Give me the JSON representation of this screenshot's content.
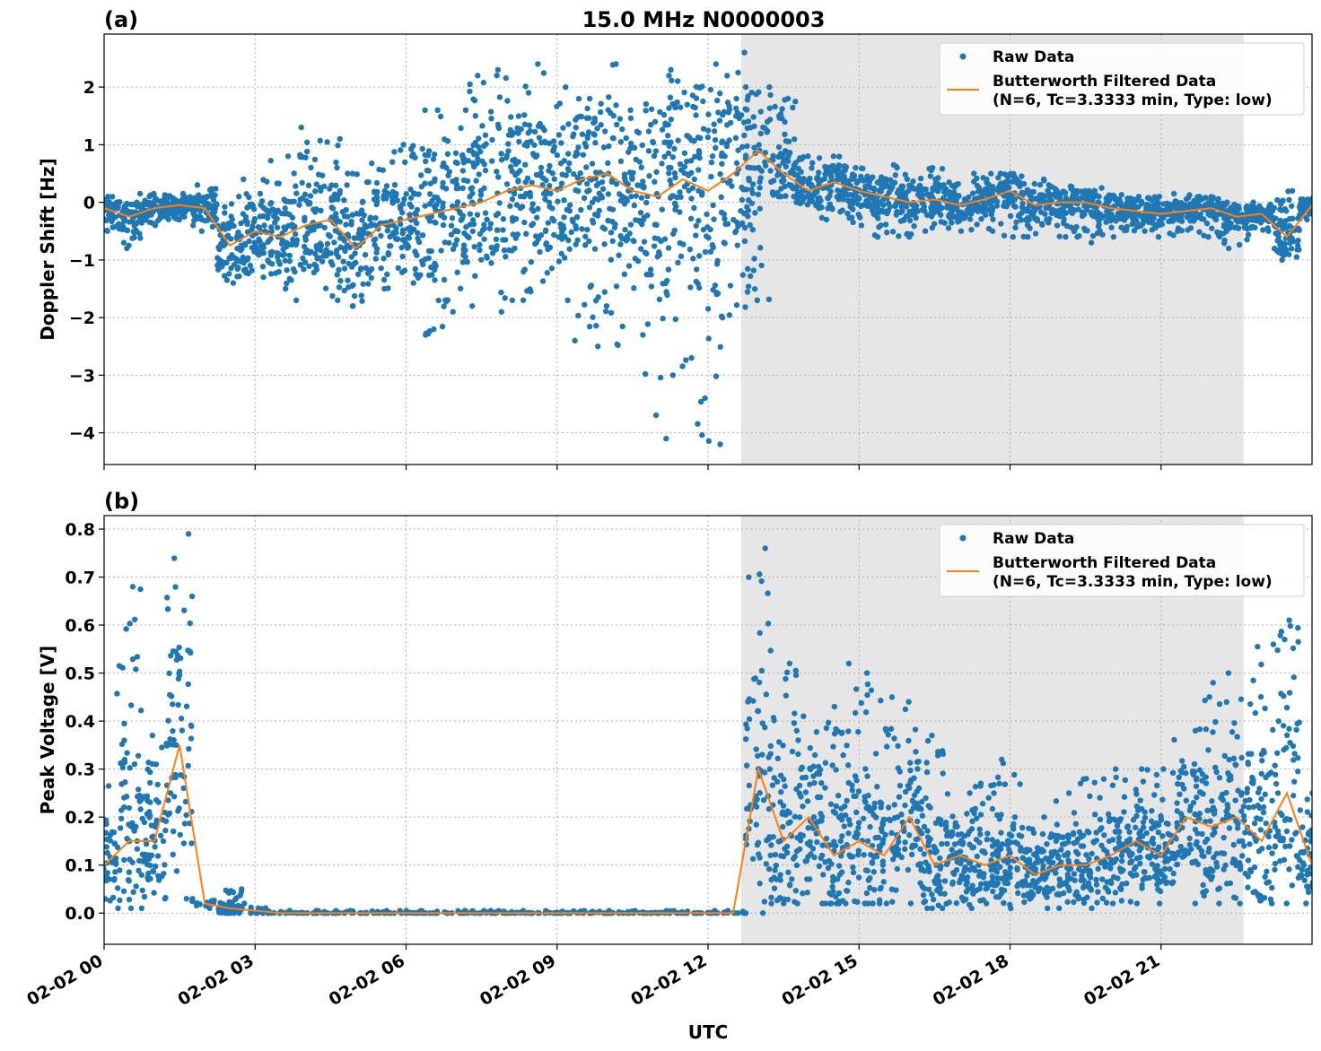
{
  "title": "15.0 MHz N0000003",
  "colors": {
    "raw": "#1f77b4",
    "filtered": "#ff7f0e",
    "shade": "#e6e6e6"
  },
  "chart_data": [
    {
      "type": "scatter",
      "panel_label": "(a)",
      "ylabel": "Doppler Shift [Hz]",
      "xlabel": "",
      "xlim_hours": [
        0,
        24
      ],
      "ylim": [
        -4.55,
        2.92
      ],
      "yticks": [
        2,
        1,
        0,
        -1,
        -2,
        -3,
        -4
      ],
      "ytick_labels": [
        "2",
        "1",
        "0",
        "−1",
        "−2",
        "−3",
        "−4"
      ],
      "shaded_region_hours": [
        12.66,
        22.64
      ],
      "grid": true,
      "legend": {
        "placement": "top-right",
        "entries": [
          "Raw Data",
          "Butterworth Filtered Data",
          "(N=6, Tc=3.3333 min, Type: low)"
        ]
      },
      "x_hours": [
        0,
        0.5,
        1,
        1.5,
        2,
        2.5,
        3,
        3.5,
        4,
        4.5,
        5,
        5.5,
        6,
        6.5,
        7,
        7.5,
        8,
        8.5,
        9,
        9.5,
        10,
        10.5,
        11,
        11.5,
        12,
        12.5,
        13,
        13.5,
        14,
        14.5,
        15,
        15.5,
        16,
        16.5,
        17,
        17.5,
        18,
        18.5,
        19,
        19.5,
        20,
        20.5,
        21,
        21.5,
        22,
        22.5,
        23,
        23.5,
        24
      ],
      "filtered": [
        -0.1,
        -0.25,
        -0.1,
        -0.05,
        -0.1,
        -0.75,
        -0.5,
        -0.6,
        -0.4,
        -0.3,
        -0.8,
        -0.4,
        -0.3,
        -0.2,
        -0.1,
        0,
        0.2,
        0.3,
        0.2,
        0.4,
        0.5,
        0.2,
        0.1,
        0.4,
        0.2,
        0.5,
        0.9,
        0.5,
        0.2,
        0.35,
        0.2,
        0.1,
        0,
        0.05,
        -0.05,
        0.05,
        0.2,
        -0.05,
        0,
        0,
        -0.1,
        -0.15,
        -0.2,
        -0.15,
        -0.1,
        -0.25,
        -0.2,
        -0.6,
        -0.05
      ],
      "raw_min": [
        -0.5,
        -0.8,
        -0.4,
        -0.3,
        -0.5,
        -1.4,
        -1.3,
        -1.5,
        -1.7,
        -1.7,
        -1.8,
        -1.5,
        -1.4,
        -2.3,
        -1.9,
        -1.8,
        -1.9,
        -1.7,
        -1.7,
        -2.4,
        -2.5,
        -2.3,
        -4.1,
        -3.0,
        -4.2,
        -2.0,
        -1.7,
        0.1,
        -0.1,
        -0.3,
        -0.4,
        -0.6,
        -0.6,
        -0.5,
        -0.5,
        -0.5,
        -0.6,
        -0.6,
        -0.6,
        -0.7,
        -0.6,
        -0.5,
        -0.6,
        -0.5,
        -0.6,
        -0.8,
        -0.5,
        -1.0,
        -0.3
      ],
      "raw_max": [
        0.1,
        0.15,
        0.15,
        0.15,
        0.3,
        0.1,
        0.4,
        0.8,
        1.3,
        1.1,
        0.5,
        0.7,
        1.0,
        1.6,
        1.6,
        2.2,
        2.3,
        2.4,
        2.0,
        1.8,
        2.4,
        1.6,
        2.2,
        2.3,
        2.4,
        2.6,
        2.0,
        1.8,
        0.8,
        0.8,
        0.6,
        0.65,
        0.6,
        0.6,
        0.35,
        0.5,
        0.5,
        0.4,
        0.3,
        0.2,
        0.25,
        0.1,
        0.1,
        0.15,
        0.1,
        0,
        0,
        0.2,
        0.1
      ]
    },
    {
      "type": "scatter",
      "panel_label": "(b)",
      "ylabel": "Peak Voltage [V]",
      "xlabel": "UTC",
      "xlim_hours": [
        0,
        24
      ],
      "xtick_hours": [
        0,
        3,
        6,
        9,
        12,
        15,
        18,
        21
      ],
      "xtick_labels": [
        "02-02 00",
        "02-02 03",
        "02-02 06",
        "02-02 09",
        "02-02 12",
        "02-02 15",
        "02-02 18",
        "02-02 21"
      ],
      "ylim": [
        -0.065,
        0.828
      ],
      "yticks": [
        0.8,
        0.7,
        0.6,
        0.5,
        0.4,
        0.3,
        0.2,
        0.1,
        0.0
      ],
      "ytick_labels": [
        "0.8",
        "0.7",
        "0.6",
        "0.5",
        "0.4",
        "0.3",
        "0.2",
        "0.1",
        "0.0"
      ],
      "shaded_region_hours": [
        12.66,
        22.64
      ],
      "grid": true,
      "legend": {
        "placement": "top-right",
        "entries": [
          "Raw Data",
          "Butterworth Filtered Data",
          "(N=6, Tc=3.3333 min, Type: low)"
        ]
      },
      "x_hours": [
        0,
        0.5,
        1,
        1.5,
        2,
        2.5,
        3,
        3.5,
        4,
        4.5,
        5,
        5.5,
        6,
        6.5,
        7,
        7.5,
        8,
        8.5,
        9,
        9.5,
        10,
        10.5,
        11,
        11.5,
        12,
        12.5,
        13,
        13.5,
        14,
        14.5,
        15,
        15.5,
        16,
        16.5,
        17,
        17.5,
        18,
        18.5,
        19,
        19.5,
        20,
        20.5,
        21,
        21.5,
        22,
        22.5,
        23,
        23.5,
        24
      ],
      "filtered": [
        0.1,
        0.15,
        0.15,
        0.35,
        0.02,
        0.01,
        0.005,
        0,
        0,
        0,
        0,
        0,
        0,
        0,
        0,
        0,
        0,
        0,
        0,
        0,
        0,
        0,
        0,
        0,
        0,
        0,
        0.3,
        0.15,
        0.2,
        0.12,
        0.15,
        0.12,
        0.2,
        0.1,
        0.12,
        0.1,
        0.12,
        0.08,
        0.1,
        0.1,
        0.12,
        0.15,
        0.12,
        0.2,
        0.18,
        0.2,
        0.15,
        0.25,
        0.1
      ],
      "raw_min": [
        0.01,
        0.01,
        0.03,
        0.03,
        0.01,
        0,
        0,
        0,
        0,
        0,
        0,
        0,
        0,
        0,
        0,
        0,
        0,
        0,
        0,
        0,
        0,
        0,
        0,
        0,
        0,
        0,
        0,
        0.02,
        0.02,
        0.02,
        0.02,
        0.02,
        0.02,
        0.01,
        0.01,
        0.02,
        0.01,
        0.01,
        0.01,
        0.01,
        0.02,
        0.02,
        0.02,
        0.02,
        0.02,
        0.02,
        0.02,
        0.02,
        0.02
      ],
      "raw_max": [
        0.28,
        0.68,
        0.37,
        0.79,
        0.03,
        0.05,
        0.02,
        0.005,
        0.005,
        0.005,
        0.005,
        0.005,
        0.005,
        0.005,
        0.005,
        0.005,
        0.005,
        0.005,
        0.005,
        0.005,
        0.005,
        0.005,
        0.005,
        0.005,
        0.005,
        0.005,
        0.76,
        0.52,
        0.41,
        0.43,
        0.52,
        0.45,
        0.44,
        0.37,
        0.25,
        0.27,
        0.32,
        0.2,
        0.25,
        0.28,
        0.3,
        0.3,
        0.3,
        0.38,
        0.48,
        0.5,
        0.56,
        0.61,
        0.25
      ]
    }
  ]
}
